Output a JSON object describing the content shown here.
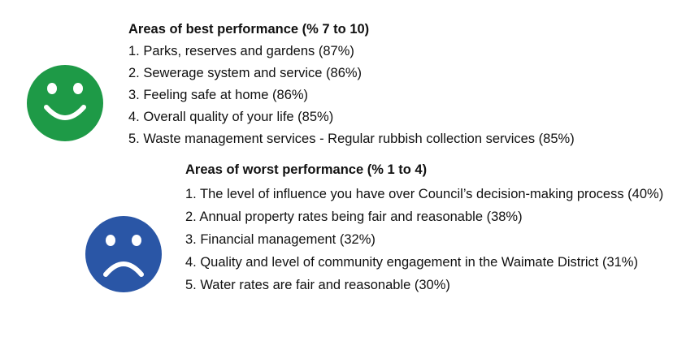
{
  "best": {
    "title": "Areas of best performance (% 7 to 10)",
    "items": [
      "1. Parks, reserves and gardens (87%)",
      "2. Sewerage system and service (86%)",
      "3. Feeling safe at home (86%)",
      "4. Overall quality of your life (85%)",
      "5. Waste management services - Regular rubbish collection services (85%)"
    ]
  },
  "worst": {
    "title": "Areas of worst performance (% 1 to 4)",
    "items": [
      "1. The level of influence you have over Council’s decision-making process (40%)",
      "2. Annual property rates being fair and reasonable (38%)",
      "3. Financial management (32%)",
      "4. Quality and level of community engagement in the Waimate District (31%)",
      "5. Water rates are fair and reasonable (30%)"
    ]
  }
}
